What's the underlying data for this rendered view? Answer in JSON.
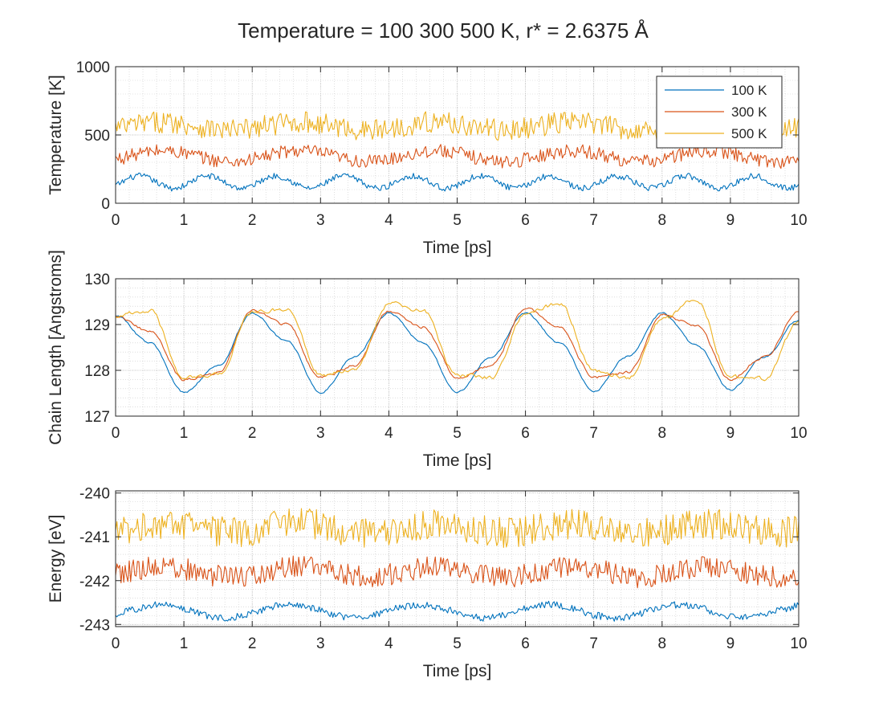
{
  "figure": {
    "title": "Temperature = 100  300  500 K,  r* = 2.6375 Å"
  },
  "colors": {
    "series_100": "#0072BD",
    "series_300": "#D95319",
    "series_500": "#EDB120",
    "grid": "#BDBDBD",
    "axis": "#262626"
  },
  "chart_data": [
    {
      "type": "line",
      "xlabel": "Time [ps]",
      "ylabel": "Temperature [K]",
      "xlim": [
        0,
        10
      ],
      "ylim": [
        0,
        1000
      ],
      "xticks": [
        0,
        1,
        2,
        3,
        4,
        5,
        6,
        7,
        8,
        9,
        10
      ],
      "yticks": [
        0,
        500,
        1000
      ],
      "grid": "on (major and minor)",
      "legend": {
        "location": "top-right",
        "entries": [
          "100 K",
          "300 K",
          "500 K"
        ]
      },
      "series": [
        {
          "name": "100 K",
          "color": "#0072BD",
          "x_range": [
            0,
            10
          ],
          "samples": 500,
          "mean": 155,
          "oscillation_amplitude": 45,
          "oscillation_period": 1.0,
          "noise_amplitude": 22
        },
        {
          "name": "300 K",
          "color": "#D95319",
          "x_range": [
            0,
            10
          ],
          "samples": 500,
          "mean": 345,
          "oscillation_amplitude": 40,
          "oscillation_period": 2.0,
          "noise_amplitude": 50
        },
        {
          "name": "500 K",
          "color": "#EDB120",
          "x_range": [
            0,
            10
          ],
          "samples": 500,
          "mean": 565,
          "oscillation_amplitude": 30,
          "oscillation_period": 2.0,
          "noise_amplitude": 80
        }
      ]
    },
    {
      "type": "line",
      "xlabel": "Time [ps]",
      "ylabel": "Chain Length [Angstroms]",
      "xlim": [
        0,
        10
      ],
      "ylim": [
        127,
        130
      ],
      "xticks": [
        0,
        1,
        2,
        3,
        4,
        5,
        6,
        7,
        8,
        9,
        10
      ],
      "yticks": [
        127,
        128,
        129,
        130
      ],
      "grid": "on (major and minor)",
      "series": [
        {
          "name": "100 K",
          "color": "#0072BD",
          "samples": 400,
          "x": [
            0,
            0.5,
            1.0,
            1.5,
            2.0,
            2.5,
            3.0,
            3.5,
            4.0,
            4.5,
            5.0,
            5.5,
            6.0,
            6.5,
            7.0,
            7.5,
            8.0,
            8.5,
            9.0,
            9.5,
            10.0
          ],
          "y": [
            129.2,
            128.6,
            127.52,
            128.1,
            129.25,
            128.65,
            127.52,
            128.3,
            129.25,
            128.6,
            127.52,
            128.3,
            129.25,
            128.6,
            127.55,
            128.3,
            129.25,
            128.55,
            127.58,
            128.3,
            129.1
          ],
          "noise_amplitude": 0.04
        },
        {
          "name": "300 K",
          "color": "#D95319",
          "samples": 400,
          "x": [
            0,
            0.5,
            1.0,
            1.5,
            2.0,
            2.5,
            3.0,
            3.5,
            4.0,
            4.5,
            5.0,
            5.5,
            6.0,
            6.5,
            7.0,
            7.5,
            8.0,
            8.5,
            9.0,
            9.5,
            10.0
          ],
          "y": [
            129.2,
            128.85,
            127.8,
            127.95,
            129.3,
            129.0,
            127.85,
            128.1,
            129.3,
            128.95,
            127.85,
            128.1,
            129.35,
            128.95,
            127.85,
            127.95,
            129.2,
            129.0,
            127.8,
            128.3,
            129.3
          ],
          "noise_amplitude": 0.06
        },
        {
          "name": "500 K",
          "color": "#EDB120",
          "samples": 400,
          "x": [
            0,
            0.5,
            1.0,
            1.5,
            2.0,
            2.5,
            3.0,
            3.5,
            4.0,
            4.5,
            5.0,
            5.5,
            6.0,
            6.5,
            7.0,
            7.5,
            8.0,
            8.5,
            9.0,
            9.5,
            10.0
          ],
          "y": [
            129.2,
            129.3,
            127.85,
            127.9,
            129.25,
            129.35,
            127.9,
            128.0,
            129.45,
            129.3,
            127.9,
            127.85,
            129.25,
            129.45,
            128.0,
            127.85,
            129.1,
            129.55,
            127.85,
            127.8,
            129.05
          ],
          "noise_amplitude": 0.09
        }
      ]
    },
    {
      "type": "line",
      "xlabel": "Time [ps]",
      "ylabel": "Energy [eV]",
      "xlim": [
        0,
        10
      ],
      "ylim": [
        -243.05,
        -239.95
      ],
      "xticks": [
        0,
        1,
        2,
        3,
        4,
        5,
        6,
        7,
        8,
        9,
        10
      ],
      "yticks": [
        -243,
        -242,
        -241,
        -240
      ],
      "grid": "on (major and minor)",
      "series": [
        {
          "name": "100 K",
          "color": "#0072BD",
          "x_range": [
            0,
            10
          ],
          "samples": 500,
          "mean": -242.7,
          "oscillation_amplitude": 0.15,
          "oscillation_period": 1.9,
          "noise_amplitude": 0.08
        },
        {
          "name": "300 K",
          "color": "#D95319",
          "x_range": [
            0,
            10
          ],
          "samples": 500,
          "mean": -241.8,
          "oscillation_amplitude": 0.12,
          "oscillation_period": 2.0,
          "noise_amplitude": 0.25
        },
        {
          "name": "500 K",
          "color": "#EDB120",
          "x_range": [
            0,
            10
          ],
          "samples": 500,
          "mean": -240.8,
          "oscillation_amplitude": 0.1,
          "oscillation_period": 2.0,
          "noise_amplitude": 0.35
        }
      ]
    }
  ]
}
